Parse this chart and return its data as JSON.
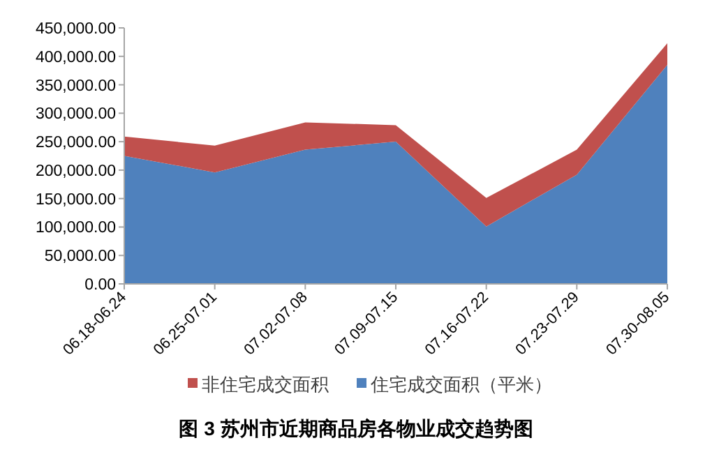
{
  "chart_data": {
    "type": "area",
    "stacked": true,
    "title": "图 3 苏州市近期商品房各物业成交趋势图",
    "categories": [
      "06.18-06.24",
      "06.25-07.01",
      "07.02-07.08",
      "07.09-07.15",
      "07.16-07.22",
      "07.23-07.29",
      "07.30-08.05"
    ],
    "series": [
      {
        "name": "住宅成交面积（平米）",
        "color": "#4f81bd",
        "values": [
          225000,
          196000,
          236000,
          250000,
          101000,
          192000,
          385000
        ]
      },
      {
        "name": "非住宅成交面积",
        "color": "#c0504d",
        "values": [
          34000,
          47000,
          48000,
          29000,
          50000,
          44000,
          38000
        ]
      }
    ],
    "ylim": [
      0,
      450000
    ],
    "yticks": [
      {
        "value": 0,
        "label": "0.00"
      },
      {
        "value": 50000,
        "label": "50,000.00"
      },
      {
        "value": 100000,
        "label": "100,000.00"
      },
      {
        "value": 150000,
        "label": "150,000.00"
      },
      {
        "value": 200000,
        "label": "200,000.00"
      },
      {
        "value": 250000,
        "label": "250,000.00"
      },
      {
        "value": 300000,
        "label": "300,000.00"
      },
      {
        "value": 350000,
        "label": "350,000.00"
      },
      {
        "value": 400000,
        "label": "400,000.00"
      },
      {
        "value": 450000,
        "label": "450,000.00"
      }
    ],
    "grid": false,
    "legend": "bottom"
  }
}
